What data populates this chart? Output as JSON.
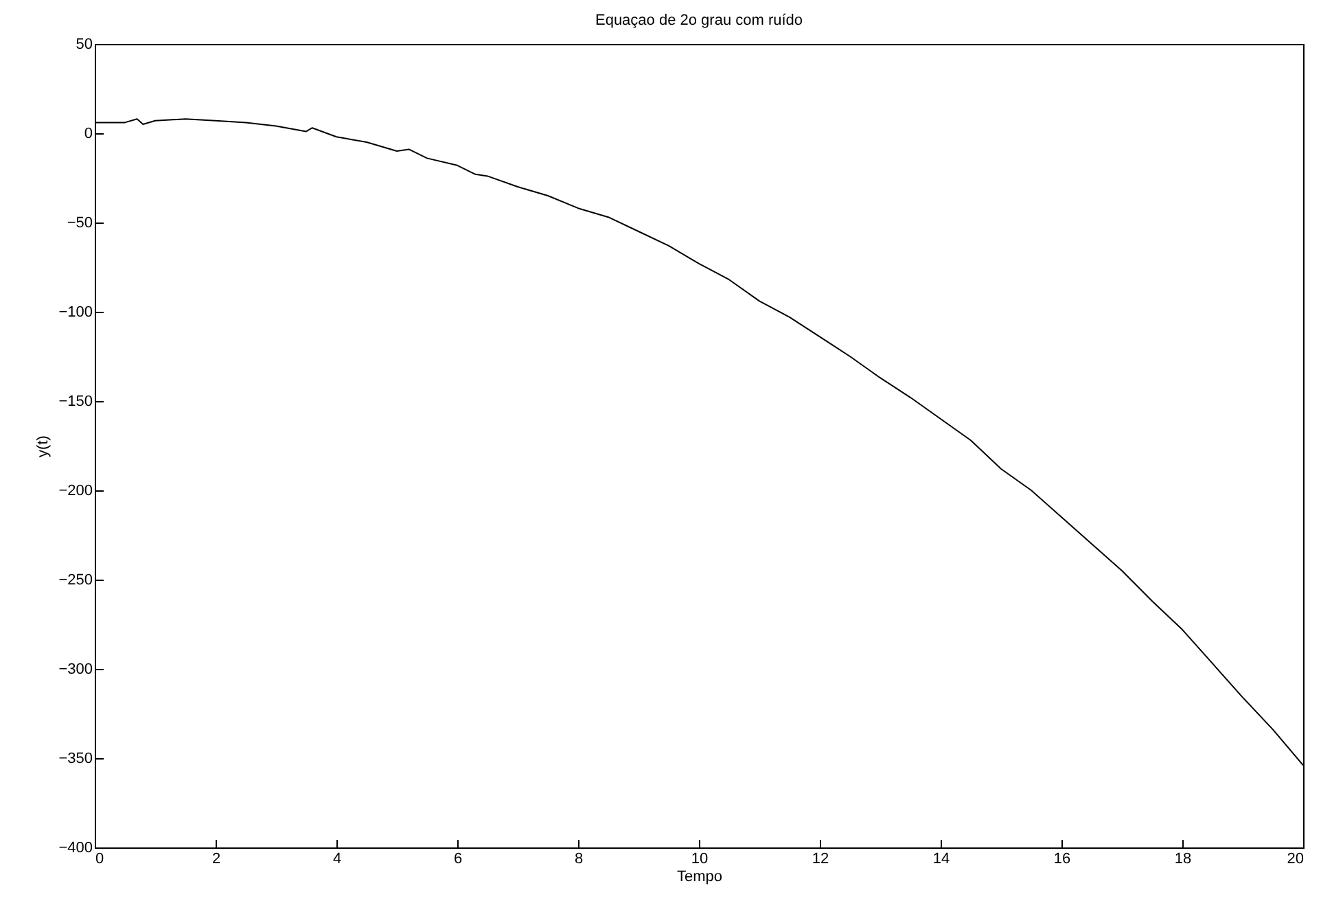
{
  "chart_data": {
    "type": "line",
    "title": "Equaçao de 2o grau com ruído",
    "xlabel": "Tempo",
    "ylabel": "y(t)",
    "x": [
      0,
      0.5,
      0.7,
      0.8,
      1,
      1.5,
      2,
      2.5,
      3,
      3.5,
      3.6,
      4,
      4.5,
      5,
      5.2,
      5.5,
      6,
      6.3,
      6.5,
      7,
      7.5,
      8,
      8.5,
      9,
      9.5,
      10,
      10.5,
      11,
      11.5,
      12,
      12.5,
      13,
      13.5,
      14,
      14.5,
      15,
      15.5,
      16,
      16.5,
      17,
      17.5,
      18,
      18.5,
      19,
      19.5,
      20
    ],
    "series": [
      {
        "color": "#000000",
        "values": [
          6,
          6,
          8,
          5,
          7,
          8,
          7,
          6,
          4,
          1,
          3,
          -2,
          -5,
          -10,
          -9,
          -14,
          -18,
          -23,
          -24,
          -30,
          -35,
          -42,
          -47,
          -55,
          -63,
          -73,
          -82,
          -94,
          -103,
          -114,
          -125,
          -137,
          -148,
          -160,
          -172,
          -188,
          -200,
          -215,
          -230,
          -245,
          -262,
          -278,
          -297,
          -316,
          -334,
          -354
        ]
      }
    ],
    "xlim": [
      0,
      20
    ],
    "xticks": [
      0,
      2,
      4,
      6,
      8,
      10,
      12,
      14,
      16,
      18,
      20
    ],
    "ylim": [
      -400,
      50
    ],
    "yticks": [
      -400,
      -350,
      -300,
      -250,
      -200,
      -150,
      -100,
      -50,
      0,
      50
    ]
  }
}
